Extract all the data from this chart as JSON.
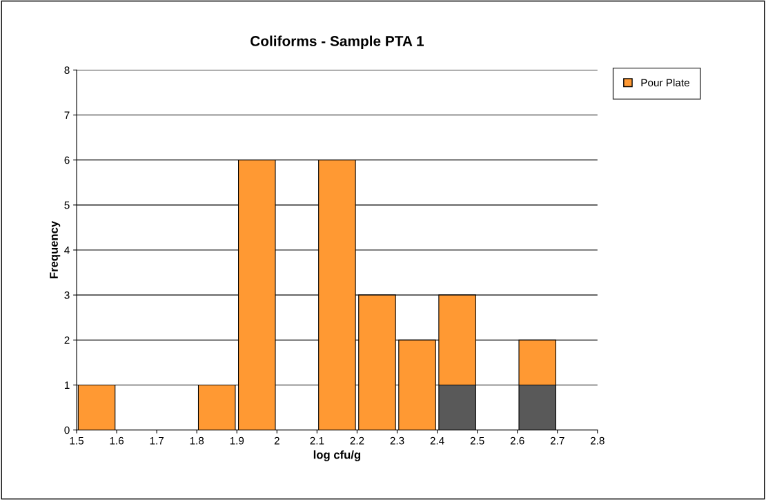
{
  "chart_data": {
    "type": "bar",
    "title": "Coliforms - Sample PTA 1",
    "xlabel": "log cfu/g",
    "ylabel": "Frequency",
    "x": [
      1.55,
      1.85,
      1.95,
      2.15,
      2.25,
      2.35,
      2.45,
      2.65
    ],
    "stacked": true,
    "series": [
      {
        "color": "#595959",
        "values": [
          null,
          null,
          null,
          null,
          null,
          null,
          1,
          1
        ]
      },
      {
        "name": "Pour Plate",
        "color": "#ff9933",
        "values": [
          1,
          1,
          6,
          6,
          3,
          2,
          2,
          1
        ]
      }
    ],
    "xlim": [
      1.5,
      2.8
    ],
    "xticks": [
      1.5,
      1.6,
      1.7,
      1.8,
      1.9,
      2,
      2.1,
      2.2,
      2.3,
      2.4,
      2.5,
      2.6,
      2.7,
      2.8
    ],
    "ylim": [
      0,
      8
    ],
    "yticks": [
      0,
      1,
      2,
      3,
      4,
      5,
      6,
      7,
      8
    ],
    "grid": "y",
    "legend": "top right"
  }
}
